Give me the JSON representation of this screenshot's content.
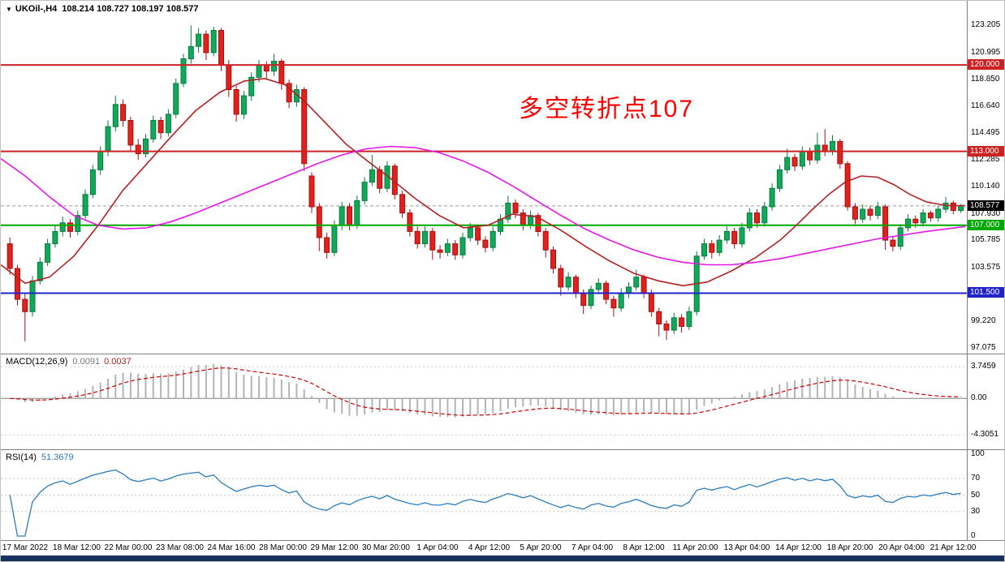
{
  "window": {
    "symbol_period": "UKOil-,H4",
    "ohlc": "108.214 108.727 108.197 108.577"
  },
  "annotation": {
    "text": "多空转折点107",
    "color": "#FF0000"
  },
  "colors": {
    "candle_up": "#0FA958",
    "candle_up_border": "#0A7A40",
    "candle_down": "#E3211C",
    "candle_down_border": "#A31212",
    "macd_hist": "#B4B4B4",
    "macd_signal": "#CC0000",
    "rsi_line": "#2B7CBE",
    "current_badge": "#000000",
    "panel_border": "#808080",
    "taskbar": "#16325C"
  },
  "chart_data": [
    {
      "type": "candlestick",
      "symbol": "UKOil-",
      "timeframe": "H4",
      "ohlc_display": {
        "open": 108.214,
        "high": 108.727,
        "low": 108.197,
        "close": 108.577
      },
      "ylim": [
        96.6,
        125.2
      ],
      "y_ticks": [
        "123.205",
        "120.995",
        "118.850",
        "116.640",
        "114.495",
        "112.285",
        "110.140",
        "107.930",
        "105.785",
        "103.575",
        "99.220",
        "97.075"
      ],
      "x_labels": [
        "17 Mar 2022",
        "18 Mar 12:00",
        "22 Mar 00:00",
        "23 Mar 08:00",
        "24 Mar 16:00",
        "28 Mar 00:00",
        "29 Mar 12:00",
        "30 Mar 20:00",
        "1 Apr 04:00",
        "4 Apr 12:00",
        "5 Apr 20:00",
        "7 Apr 04:00",
        "8 Apr 12:00",
        "11 Apr 20:00",
        "13 Apr 04:00",
        "14 Apr 12:00",
        "18 Apr 20:00",
        "20 Apr 04:00",
        "21 Apr 12:00"
      ],
      "hlines": [
        {
          "value": 120.0,
          "label": "120.000",
          "color": "#CC2222"
        },
        {
          "value": 113.0,
          "label": "113.000",
          "color": "#CC2222"
        },
        {
          "value": 107.0,
          "label": "107.000",
          "color": "#00A800"
        },
        {
          "value": 101.5,
          "label": "101.500",
          "color": "#2222CC"
        }
      ],
      "current_price": {
        "value": 108.577,
        "label": "108.577"
      },
      "ma_fast": {
        "name": "fast moving average",
        "color": "#B22222",
        "points": [
          [
            0,
            103.8
          ],
          [
            30,
            102.3
          ],
          [
            60,
            102.8
          ],
          [
            90,
            104.5
          ],
          [
            120,
            107.0
          ],
          [
            150,
            109.8
          ],
          [
            180,
            112.0
          ],
          [
            210,
            114.2
          ],
          [
            240,
            116.3
          ],
          [
            270,
            117.8
          ],
          [
            300,
            118.7
          ],
          [
            325,
            118.9
          ],
          [
            350,
            118.4
          ],
          [
            375,
            117.0
          ],
          [
            400,
            115.3
          ],
          [
            425,
            113.6
          ],
          [
            450,
            112.3
          ],
          [
            480,
            110.8
          ],
          [
            510,
            109.2
          ],
          [
            540,
            107.8
          ],
          [
            570,
            106.8
          ],
          [
            600,
            107.0
          ],
          [
            630,
            107.9
          ],
          [
            660,
            107.7
          ],
          [
            690,
            106.6
          ],
          [
            720,
            105.3
          ],
          [
            750,
            104.1
          ],
          [
            780,
            103.1
          ],
          [
            810,
            102.5
          ],
          [
            840,
            102.1
          ],
          [
            870,
            102.4
          ],
          [
            900,
            103.3
          ],
          [
            930,
            104.4
          ],
          [
            960,
            105.8
          ],
          [
            980,
            107.0
          ],
          [
            1000,
            108.3
          ],
          [
            1020,
            109.5
          ],
          [
            1040,
            110.5
          ],
          [
            1060,
            111.0
          ],
          [
            1080,
            110.9
          ],
          [
            1100,
            110.3
          ],
          [
            1120,
            109.5
          ],
          [
            1140,
            108.9
          ],
          [
            1165,
            108.6
          ],
          [
            1188,
            108.6
          ]
        ]
      },
      "ma_slow": {
        "name": "slow moving average",
        "color": "#E317E3",
        "points": [
          [
            0,
            112.4
          ],
          [
            30,
            111.0
          ],
          [
            60,
            109.3
          ],
          [
            90,
            107.8
          ],
          [
            120,
            107.0
          ],
          [
            150,
            106.7
          ],
          [
            180,
            106.8
          ],
          [
            210,
            107.3
          ],
          [
            240,
            108.0
          ],
          [
            270,
            108.8
          ],
          [
            300,
            109.6
          ],
          [
            330,
            110.4
          ],
          [
            360,
            111.2
          ],
          [
            390,
            112.0
          ],
          [
            420,
            112.7
          ],
          [
            450,
            113.2
          ],
          [
            480,
            113.4
          ],
          [
            510,
            113.3
          ],
          [
            540,
            112.9
          ],
          [
            570,
            112.2
          ],
          [
            600,
            111.3
          ],
          [
            630,
            110.2
          ],
          [
            660,
            109.0
          ],
          [
            690,
            107.8
          ],
          [
            720,
            106.7
          ],
          [
            750,
            105.8
          ],
          [
            780,
            105.0
          ],
          [
            810,
            104.4
          ],
          [
            840,
            104.0
          ],
          [
            870,
            103.8
          ],
          [
            900,
            103.8
          ],
          [
            930,
            104.0
          ],
          [
            960,
            104.3
          ],
          [
            990,
            104.7
          ],
          [
            1020,
            105.1
          ],
          [
            1050,
            105.5
          ],
          [
            1080,
            105.9
          ],
          [
            1110,
            106.2
          ],
          [
            1140,
            106.5
          ],
          [
            1188,
            106.9
          ]
        ]
      },
      "candles": [
        [
          105.5,
          106.0,
          103.0,
          103.5
        ],
        [
          103.5,
          103.8,
          100.5,
          101.0
        ],
        [
          101.0,
          101.5,
          97.6,
          100.0
        ],
        [
          100.0,
          102.9,
          99.6,
          102.5
        ],
        [
          102.5,
          104.4,
          102.2,
          104.0
        ],
        [
          104.0,
          105.9,
          103.7,
          105.5
        ],
        [
          105.5,
          107.0,
          105.2,
          106.5
        ],
        [
          106.5,
          107.7,
          106.1,
          107.2
        ],
        [
          107.2,
          107.5,
          106.0,
          106.5
        ],
        [
          106.5,
          108.2,
          106.2,
          107.8
        ],
        [
          107.8,
          109.9,
          107.5,
          109.5
        ],
        [
          109.5,
          111.9,
          109.2,
          111.5
        ],
        [
          111.5,
          113.4,
          111.1,
          113.0
        ],
        [
          113.0,
          115.5,
          112.6,
          115.0
        ],
        [
          115.0,
          117.5,
          114.6,
          116.8
        ],
        [
          116.8,
          117.2,
          115.0,
          115.5
        ],
        [
          115.5,
          115.8,
          113.0,
          113.5
        ],
        [
          113.5,
          114.0,
          112.3,
          112.8
        ],
        [
          112.8,
          114.4,
          112.5,
          114.0
        ],
        [
          114.0,
          115.9,
          113.7,
          115.5
        ],
        [
          115.5,
          115.8,
          114.0,
          114.5
        ],
        [
          114.5,
          116.4,
          114.2,
          116.0
        ],
        [
          116.0,
          118.9,
          115.7,
          118.5
        ],
        [
          118.5,
          120.9,
          118.2,
          120.5
        ],
        [
          120.5,
          123.2,
          120.1,
          121.5
        ],
        [
          121.5,
          123.0,
          121.0,
          122.5
        ],
        [
          122.5,
          122.8,
          120.4,
          121.0
        ],
        [
          121.0,
          123.1,
          120.7,
          122.8
        ],
        [
          122.8,
          123.0,
          119.5,
          120.0
        ],
        [
          120.0,
          120.4,
          117.4,
          118.0
        ],
        [
          118.0,
          118.3,
          115.4,
          116.0
        ],
        [
          116.0,
          117.9,
          115.6,
          117.5
        ],
        [
          117.5,
          119.4,
          117.1,
          119.0
        ],
        [
          119.0,
          120.4,
          118.6,
          120.0
        ],
        [
          120.0,
          120.3,
          118.9,
          119.5
        ],
        [
          119.5,
          120.9,
          119.1,
          120.3
        ],
        [
          120.3,
          120.5,
          118.0,
          118.5
        ],
        [
          118.5,
          118.8,
          116.5,
          117.0
        ],
        [
          117.0,
          118.4,
          116.6,
          118.0
        ],
        [
          118.0,
          118.2,
          111.4,
          112.0
        ],
        [
          111.0,
          111.3,
          108.0,
          108.5
        ],
        [
          108.5,
          108.8,
          104.9,
          106.0
        ],
        [
          106.0,
          106.4,
          104.3,
          104.8
        ],
        [
          104.8,
          107.4,
          104.5,
          107.0
        ],
        [
          107.0,
          108.9,
          106.6,
          108.5
        ],
        [
          108.5,
          108.8,
          106.6,
          107.0
        ],
        [
          107.0,
          109.4,
          106.7,
          109.0
        ],
        [
          109.0,
          110.9,
          108.7,
          110.5
        ],
        [
          110.5,
          112.7,
          110.2,
          111.5
        ],
        [
          111.5,
          111.8,
          109.6,
          110.0
        ],
        [
          110.0,
          112.2,
          109.7,
          111.8
        ],
        [
          111.8,
          112.0,
          109.1,
          109.5
        ],
        [
          109.5,
          109.8,
          107.6,
          108.0
        ],
        [
          108.0,
          108.3,
          106.1,
          106.5
        ],
        [
          106.5,
          106.9,
          105.1,
          105.5
        ],
        [
          105.5,
          106.9,
          105.2,
          106.5
        ],
        [
          106.5,
          106.8,
          104.2,
          105.0
        ],
        [
          105.0,
          105.4,
          104.3,
          104.8
        ],
        [
          104.8,
          105.9,
          104.5,
          105.5
        ],
        [
          105.5,
          105.8,
          104.2,
          104.6
        ],
        [
          104.6,
          106.4,
          104.3,
          106.0
        ],
        [
          106.0,
          107.2,
          105.7,
          106.8
        ],
        [
          106.8,
          107.0,
          105.4,
          105.8
        ],
        [
          105.8,
          106.1,
          104.8,
          105.2
        ],
        [
          105.2,
          106.9,
          104.9,
          106.5
        ],
        [
          106.5,
          107.9,
          106.2,
          107.5
        ],
        [
          107.5,
          109.4,
          107.2,
          108.8
        ],
        [
          108.8,
          109.1,
          107.6,
          108.0
        ],
        [
          108.0,
          108.3,
          106.6,
          107.0
        ],
        [
          107.0,
          108.2,
          106.7,
          107.8
        ],
        [
          107.8,
          108.0,
          106.1,
          106.5
        ],
        [
          106.5,
          106.8,
          104.4,
          105.0
        ],
        [
          105.0,
          105.3,
          103.1,
          103.5
        ],
        [
          103.5,
          103.8,
          101.3,
          102.0
        ],
        [
          102.0,
          103.2,
          101.7,
          102.8
        ],
        [
          102.8,
          103.0,
          101.1,
          101.5
        ],
        [
          101.5,
          101.8,
          99.8,
          100.5
        ],
        [
          100.5,
          102.1,
          100.2,
          101.8
        ],
        [
          101.8,
          102.7,
          101.4,
          102.3
        ],
        [
          102.3,
          102.5,
          100.6,
          101.0
        ],
        [
          101.0,
          101.3,
          99.6,
          100.3
        ],
        [
          100.3,
          101.9,
          100.0,
          101.5
        ],
        [
          101.5,
          102.4,
          101.1,
          102.0
        ],
        [
          102.0,
          103.4,
          101.7,
          102.8
        ],
        [
          102.8,
          103.0,
          101.1,
          101.5
        ],
        [
          101.5,
          101.8,
          99.6,
          100.0
        ],
        [
          100.0,
          100.3,
          98.0,
          99.0
        ],
        [
          99.0,
          99.3,
          97.7,
          98.5
        ],
        [
          98.5,
          99.9,
          98.2,
          99.5
        ],
        [
          99.5,
          99.8,
          98.3,
          98.8
        ],
        [
          98.8,
          100.4,
          98.5,
          100.0
        ],
        [
          100.0,
          104.9,
          99.7,
          104.5
        ],
        [
          104.5,
          105.9,
          104.2,
          105.5
        ],
        [
          105.5,
          105.8,
          104.3,
          104.8
        ],
        [
          104.8,
          106.2,
          104.5,
          105.8
        ],
        [
          105.8,
          106.9,
          105.5,
          106.5
        ],
        [
          106.5,
          106.8,
          105.1,
          105.5
        ],
        [
          105.5,
          107.2,
          105.2,
          106.8
        ],
        [
          106.8,
          108.4,
          106.5,
          108.0
        ],
        [
          108.0,
          108.3,
          106.8,
          107.2
        ],
        [
          107.2,
          108.9,
          106.9,
          108.5
        ],
        [
          108.5,
          110.4,
          108.2,
          110.0
        ],
        [
          110.0,
          111.9,
          109.7,
          111.5
        ],
        [
          111.5,
          113.2,
          111.2,
          112.5
        ],
        [
          112.5,
          112.8,
          111.4,
          111.8
        ],
        [
          111.8,
          113.4,
          111.5,
          113.0
        ],
        [
          113.0,
          113.3,
          111.9,
          112.3
        ],
        [
          112.3,
          114.5,
          112.0,
          113.5
        ],
        [
          113.5,
          114.8,
          112.6,
          113.0
        ],
        [
          113.0,
          114.3,
          112.7,
          113.8
        ],
        [
          113.8,
          114.0,
          111.6,
          112.0
        ],
        [
          112.0,
          112.2,
          108.2,
          108.5
        ],
        [
          108.5,
          108.8,
          107.1,
          107.5
        ],
        [
          107.5,
          108.7,
          107.2,
          108.3
        ],
        [
          108.3,
          108.6,
          107.4,
          107.8
        ],
        [
          107.8,
          108.9,
          107.5,
          108.5
        ],
        [
          108.5,
          108.7,
          105.0,
          105.8
        ],
        [
          105.8,
          106.1,
          104.9,
          105.3
        ],
        [
          105.3,
          107.1,
          105.0,
          106.8
        ],
        [
          106.8,
          107.9,
          106.5,
          107.5
        ],
        [
          107.5,
          107.8,
          106.8,
          107.2
        ],
        [
          107.2,
          108.3,
          106.9,
          108.0
        ],
        [
          108.0,
          108.2,
          107.3,
          107.6
        ],
        [
          107.6,
          108.6,
          107.3,
          108.3
        ],
        [
          108.3,
          109.3,
          108.0,
          108.8
        ],
        [
          108.8,
          109.0,
          107.9,
          108.2
        ],
        [
          108.2,
          108.73,
          108.0,
          108.58
        ]
      ]
    },
    {
      "type": "macd",
      "label": "MACD(12,26,9)",
      "params": [
        12,
        26,
        9
      ],
      "value_main": "0.0091",
      "value_signal": "0.0037",
      "ylim": [
        -6.0,
        5.2
      ],
      "y_ticks": [
        {
          "v": 3.7459,
          "t": "3.7459"
        },
        {
          "v": 0,
          "t": "0.00"
        },
        {
          "v": -4.3051,
          "t": "-4.3051"
        }
      ]
    },
    {
      "type": "rsi",
      "label": "RSI(14)",
      "period": 14,
      "value": "51.3679",
      "ylim": [
        0,
        100
      ],
      "levels": [
        70,
        50,
        30
      ],
      "y_ticks": [
        "100",
        "70",
        "50",
        "30",
        "0"
      ]
    }
  ]
}
